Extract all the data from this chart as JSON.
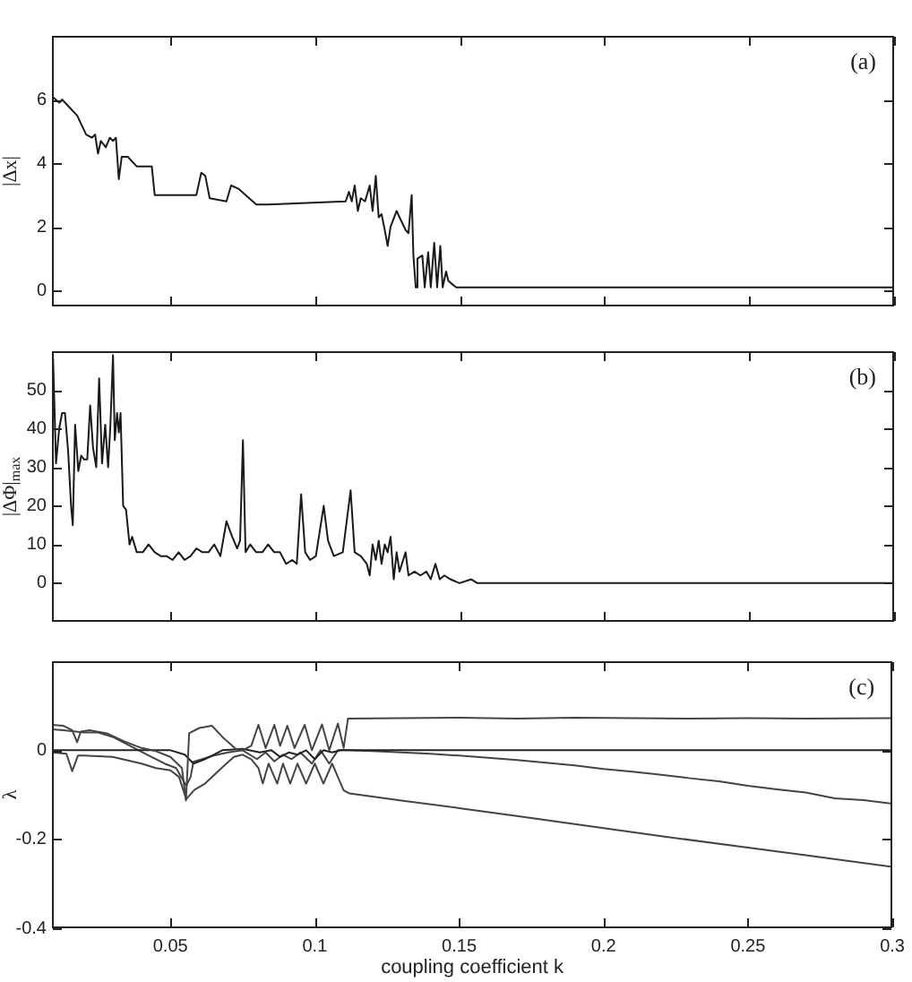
{
  "chart_data": [
    {
      "type": "line",
      "ylabel": "|Δx|",
      "annotations": [
        "(a)"
      ],
      "grid": false,
      "legend": false,
      "tick_labels": "y",
      "color": "#1a1a1a",
      "xlim": [
        0.009,
        0.3
      ],
      "xticks": [
        0.05,
        0.1,
        0.15,
        0.2,
        0.25,
        0.3
      ],
      "ylim": [
        -0.5,
        8
      ],
      "yticks": [
        0,
        2,
        4,
        6
      ],
      "x": [
        0.009,
        0.0115,
        0.0125,
        0.0156,
        0.0177,
        0.0208,
        0.0228,
        0.0239,
        0.0249,
        0.0259,
        0.0276,
        0.029,
        0.0301,
        0.0311,
        0.0321,
        0.0331,
        0.0352,
        0.0383,
        0.0435,
        0.0445,
        0.0589,
        0.0606,
        0.062,
        0.0635,
        0.0693,
        0.0709,
        0.0734,
        0.0796,
        0.0837,
        0.1105,
        0.1116,
        0.1126,
        0.1136,
        0.1147,
        0.1157,
        0.1172,
        0.1188,
        0.1198,
        0.1209,
        0.1219,
        0.1229,
        0.124,
        0.125,
        0.126,
        0.1281,
        0.1291,
        0.1312,
        0.1322,
        0.1333,
        0.1339,
        0.1347,
        0.1353,
        0.137,
        0.1378,
        0.139,
        0.1399,
        0.1411,
        0.1421,
        0.1432,
        0.144,
        0.1452,
        0.146,
        0.1473,
        0.1487,
        0.1502,
        0.156,
        0.3
      ],
      "values": [
        6.1,
        5.9,
        6.0,
        5.7,
        5.5,
        4.9,
        4.8,
        4.9,
        4.3,
        4.7,
        4.5,
        4.8,
        4.7,
        4.8,
        3.5,
        4.2,
        4.2,
        3.9,
        3.9,
        3.0,
        3.0,
        3.7,
        3.6,
        2.9,
        2.8,
        3.3,
        3.2,
        2.7,
        2.7,
        2.8,
        3.1,
        2.8,
        3.3,
        2.5,
        2.9,
        2.8,
        3.3,
        2.5,
        3.6,
        2.3,
        2.4,
        1.9,
        1.4,
        2.0,
        2.5,
        2.3,
        1.9,
        1.8,
        3.0,
        1.1,
        0.1,
        1.0,
        1.1,
        0.1,
        1.2,
        0.1,
        1.5,
        0.1,
        1.4,
        0.1,
        0.6,
        0.3,
        0.2,
        0.1,
        0.1,
        0.1,
        0.1
      ]
    },
    {
      "type": "line",
      "ylabel": "|ΔΦ|$_{max}$",
      "annotations": [
        "(b)"
      ],
      "grid": false,
      "legend": false,
      "tick_labels": "y",
      "color": "#1a1a1a",
      "xlim": [
        0.009,
        0.3
      ],
      "xticks": [
        0.05,
        0.1,
        0.15,
        0.2,
        0.25,
        0.3
      ],
      "ylim": [
        -10,
        60
      ],
      "yticks": [
        0,
        10,
        20,
        30,
        40,
        50
      ],
      "x": [
        0.0094,
        0.0104,
        0.0115,
        0.0125,
        0.0135,
        0.0146,
        0.0156,
        0.0162,
        0.017,
        0.0181,
        0.0191,
        0.0201,
        0.0212,
        0.0222,
        0.0232,
        0.0243,
        0.0253,
        0.0263,
        0.0274,
        0.0284,
        0.0292,
        0.0301,
        0.0307,
        0.0315,
        0.0321,
        0.0327,
        0.0336,
        0.0346,
        0.0358,
        0.0367,
        0.0383,
        0.0404,
        0.0424,
        0.0445,
        0.0466,
        0.0486,
        0.0507,
        0.0528,
        0.0548,
        0.0569,
        0.0589,
        0.061,
        0.0631,
        0.0651,
        0.0672,
        0.0693,
        0.0713,
        0.073,
        0.074,
        0.075,
        0.0759,
        0.0775,
        0.0796,
        0.0817,
        0.0837,
        0.0858,
        0.0878,
        0.0899,
        0.092,
        0.0936,
        0.0951,
        0.0965,
        0.0982,
        0.1002,
        0.1029,
        0.1044,
        0.1064,
        0.1095,
        0.1122,
        0.1136,
        0.1157,
        0.1178,
        0.1188,
        0.1198,
        0.1209,
        0.1219,
        0.1229,
        0.124,
        0.125,
        0.126,
        0.1271,
        0.1281,
        0.1291,
        0.1312,
        0.1322,
        0.1343,
        0.1363,
        0.1384,
        0.1399,
        0.1415,
        0.143,
        0.1446,
        0.1467,
        0.1498,
        0.1539,
        0.156,
        0.3
      ],
      "values": [
        58,
        31,
        40,
        44,
        44,
        34,
        20,
        15,
        41,
        29,
        33,
        32,
        32,
        46,
        35,
        30,
        53,
        31,
        41,
        30,
        41,
        59,
        37,
        44,
        39,
        44,
        20,
        19,
        10,
        12,
        8,
        8,
        10,
        8,
        7,
        7,
        6,
        8,
        6,
        7,
        9,
        8,
        8,
        10,
        7,
        16,
        12,
        9,
        11,
        37,
        8,
        10,
        8,
        8,
        10,
        8,
        8,
        5,
        6,
        5,
        23,
        8,
        6,
        7,
        20,
        11,
        7,
        8,
        24,
        8,
        7,
        5,
        2,
        10,
        6,
        11,
        5,
        10,
        8,
        12,
        1,
        8,
        3,
        8,
        2,
        3,
        2,
        3,
        1,
        5,
        1,
        2,
        1,
        0,
        1,
        0,
        0
      ]
    },
    {
      "type": "line",
      "ylabel": "λ",
      "xlabel": "coupling coefficient k",
      "annotations": [
        "(c)"
      ],
      "grid": false,
      "legend": false,
      "xlim": [
        0.009,
        0.3
      ],
      "xticks": [
        0.05,
        0.1,
        0.15,
        0.2,
        0.25,
        0.3
      ],
      "ylim": [
        -0.4,
        0.2
      ],
      "yticks": [
        -0.4,
        -0.2,
        0
      ],
      "series": [
        {
          "color": "#444444",
          "x": [
            0.009,
            0.013,
            0.016,
            0.0177,
            0.019,
            0.022,
            0.028,
            0.034,
            0.04,
            0.045,
            0.05,
            0.054,
            0.0554,
            0.0565,
            0.06,
            0.0644,
            0.068,
            0.0726,
            0.075,
            0.078,
            0.0805,
            0.083,
            0.086,
            0.088,
            0.0905,
            0.093,
            0.0965,
            0.099,
            0.1025,
            0.105,
            0.108,
            0.11,
            0.1115,
            0.13,
            0.15,
            0.17,
            0.19,
            0.21,
            0.23,
            0.25,
            0.27,
            0.3
          ],
          "values": [
            0.057,
            0.055,
            0.045,
            0.018,
            0.042,
            0.045,
            0.038,
            0.02,
            0.005,
            -0.002,
            -0.015,
            -0.04,
            -0.113,
            0.038,
            0.05,
            0.055,
            0.03,
            0.003,
            0.0,
            0.01,
            0.057,
            0.005,
            0.057,
            0.01,
            0.055,
            0.005,
            0.057,
            0.0,
            0.058,
            0.0,
            0.06,
            0.005,
            0.071,
            0.072,
            0.073,
            0.071,
            0.073,
            0.072,
            0.071,
            0.072,
            0.071,
            0.072
          ]
        },
        {
          "color": "#222222",
          "x": [
            0.009,
            0.04,
            0.05,
            0.055,
            0.058,
            0.062,
            0.068,
            0.075,
            0.081,
            0.085,
            0.088,
            0.091,
            0.094,
            0.097,
            0.1,
            0.103,
            0.106,
            0.109,
            0.112,
            0.3
          ],
          "values": [
            0.0,
            0.0,
            0.0,
            -0.01,
            -0.03,
            -0.02,
            0.0,
            0.003,
            -0.005,
            0.0,
            -0.015,
            -0.005,
            -0.01,
            0.0,
            -0.02,
            0.0,
            -0.005,
            0.0,
            0.0,
            0.0
          ]
        },
        {
          "color": "#444444",
          "x": [
            0.009,
            0.013,
            0.02,
            0.025,
            0.03,
            0.036,
            0.042,
            0.048,
            0.052,
            0.0555,
            0.057,
            0.058,
            0.061,
            0.065,
            0.07,
            0.075,
            0.08,
            0.083,
            0.086,
            0.089,
            0.092,
            0.095,
            0.099,
            0.102,
            0.105,
            0.108,
            0.111,
            0.12,
            0.13,
            0.14,
            0.15,
            0.16,
            0.17,
            0.18,
            0.19,
            0.2,
            0.21,
            0.22,
            0.23,
            0.24,
            0.25,
            0.26,
            0.27,
            0.28,
            0.29,
            0.3
          ],
          "values": [
            0.047,
            0.045,
            0.04,
            0.04,
            0.03,
            0.01,
            -0.01,
            -0.03,
            -0.04,
            -0.08,
            -0.06,
            -0.026,
            -0.02,
            -0.012,
            -0.005,
            0.0,
            -0.02,
            -0.005,
            -0.025,
            -0.01,
            -0.02,
            -0.005,
            -0.03,
            0.0,
            -0.03,
            0.0,
            0.0,
            -0.002,
            -0.005,
            -0.008,
            -0.012,
            -0.017,
            -0.022,
            -0.028,
            -0.034,
            -0.042,
            -0.048,
            -0.055,
            -0.063,
            -0.07,
            -0.08,
            -0.088,
            -0.095,
            -0.108,
            -0.112,
            -0.12
          ]
        },
        {
          "color": "#444444",
          "x": [
            0.009,
            0.014,
            0.016,
            0.018,
            0.02,
            0.03,
            0.04,
            0.045,
            0.05,
            0.053,
            0.0555,
            0.0583,
            0.062,
            0.0687,
            0.072,
            0.075,
            0.078,
            0.0805,
            0.082,
            0.084,
            0.087,
            0.089,
            0.0915,
            0.094,
            0.097,
            0.1,
            0.103,
            0.106,
            0.108,
            0.11,
            0.112,
            0.13,
            0.15,
            0.17,
            0.19,
            0.2,
            0.22,
            0.25,
            0.27,
            0.3
          ],
          "values": [
            -0.005,
            -0.008,
            -0.047,
            -0.012,
            -0.012,
            -0.015,
            -0.03,
            -0.04,
            -0.045,
            -0.06,
            -0.11,
            -0.089,
            -0.075,
            -0.034,
            -0.015,
            -0.01,
            -0.02,
            -0.04,
            -0.075,
            -0.03,
            -0.075,
            -0.03,
            -0.075,
            -0.03,
            -0.075,
            -0.03,
            -0.075,
            -0.03,
            -0.06,
            -0.09,
            -0.097,
            -0.113,
            -0.13,
            -0.148,
            -0.166,
            -0.175,
            -0.193,
            -0.219,
            -0.236,
            -0.262
          ]
        }
      ]
    }
  ]
}
